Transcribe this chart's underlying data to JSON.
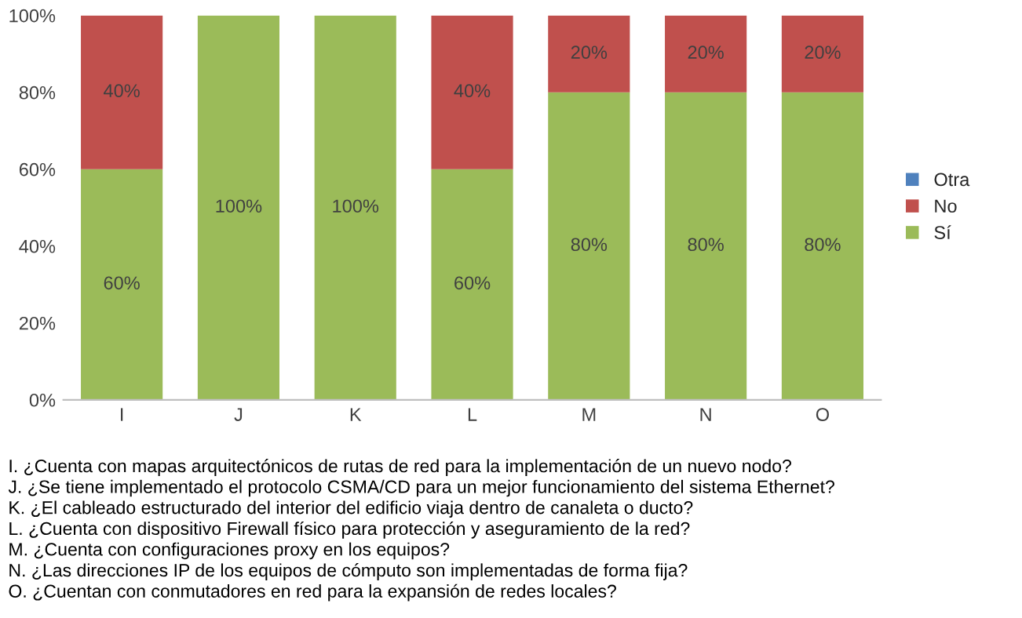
{
  "chart_data": {
    "type": "bar",
    "stacked": true,
    "categories": [
      "I",
      "J",
      "K",
      "L",
      "M",
      "N",
      "O"
    ],
    "series": [
      {
        "name": "Sí",
        "color": "#9bbb59",
        "values": [
          60,
          100,
          100,
          60,
          80,
          80,
          80
        ],
        "value_labels": [
          "60%",
          "100%",
          "100%",
          "60%",
          "80%",
          "80%",
          "80%"
        ]
      },
      {
        "name": "No",
        "color": "#c0504d",
        "values": [
          40,
          0,
          0,
          40,
          20,
          20,
          20
        ],
        "value_labels": [
          "40%",
          null,
          null,
          "40%",
          "20%",
          "20%",
          "20%"
        ]
      },
      {
        "name": "Otra",
        "color": "#4f81bd",
        "values": [
          0,
          0,
          0,
          0,
          0,
          0,
          0
        ],
        "value_labels": [
          null,
          null,
          null,
          null,
          null,
          null,
          null
        ]
      }
    ],
    "ylim": [
      0,
      100
    ],
    "yticks": [
      {
        "value": 0,
        "label": "0%"
      },
      {
        "value": 20,
        "label": "20%"
      },
      {
        "value": 40,
        "label": "40%"
      },
      {
        "value": 60,
        "label": "60%"
      },
      {
        "value": 80,
        "label": "80%"
      },
      {
        "value": 100,
        "label": "100%"
      }
    ],
    "grid": false,
    "legend": "right",
    "annotations": [
      "I. ¿Cuenta con mapas arquitectónicos de rutas de red para la implementación de un nuevo nodo?",
      "J. ¿Se tiene implementado el protocolo CSMA/CD para un mejor funcionamiento del sistema Ethernet?",
      "K. ¿El cableado estructurado del interior del edificio viaja dentro de canaleta o ducto?",
      "L. ¿Cuenta con dispositivo Firewall físico para protección y aseguramiento de la red?",
      "M. ¿Cuenta con configuraciones proxy en los equipos?",
      "N. ¿Las direcciones IP de los equipos de cómputo son implementadas de forma fija?",
      "O. ¿Cuentan con conmutadores en red para la expansión de redes locales?"
    ]
  }
}
